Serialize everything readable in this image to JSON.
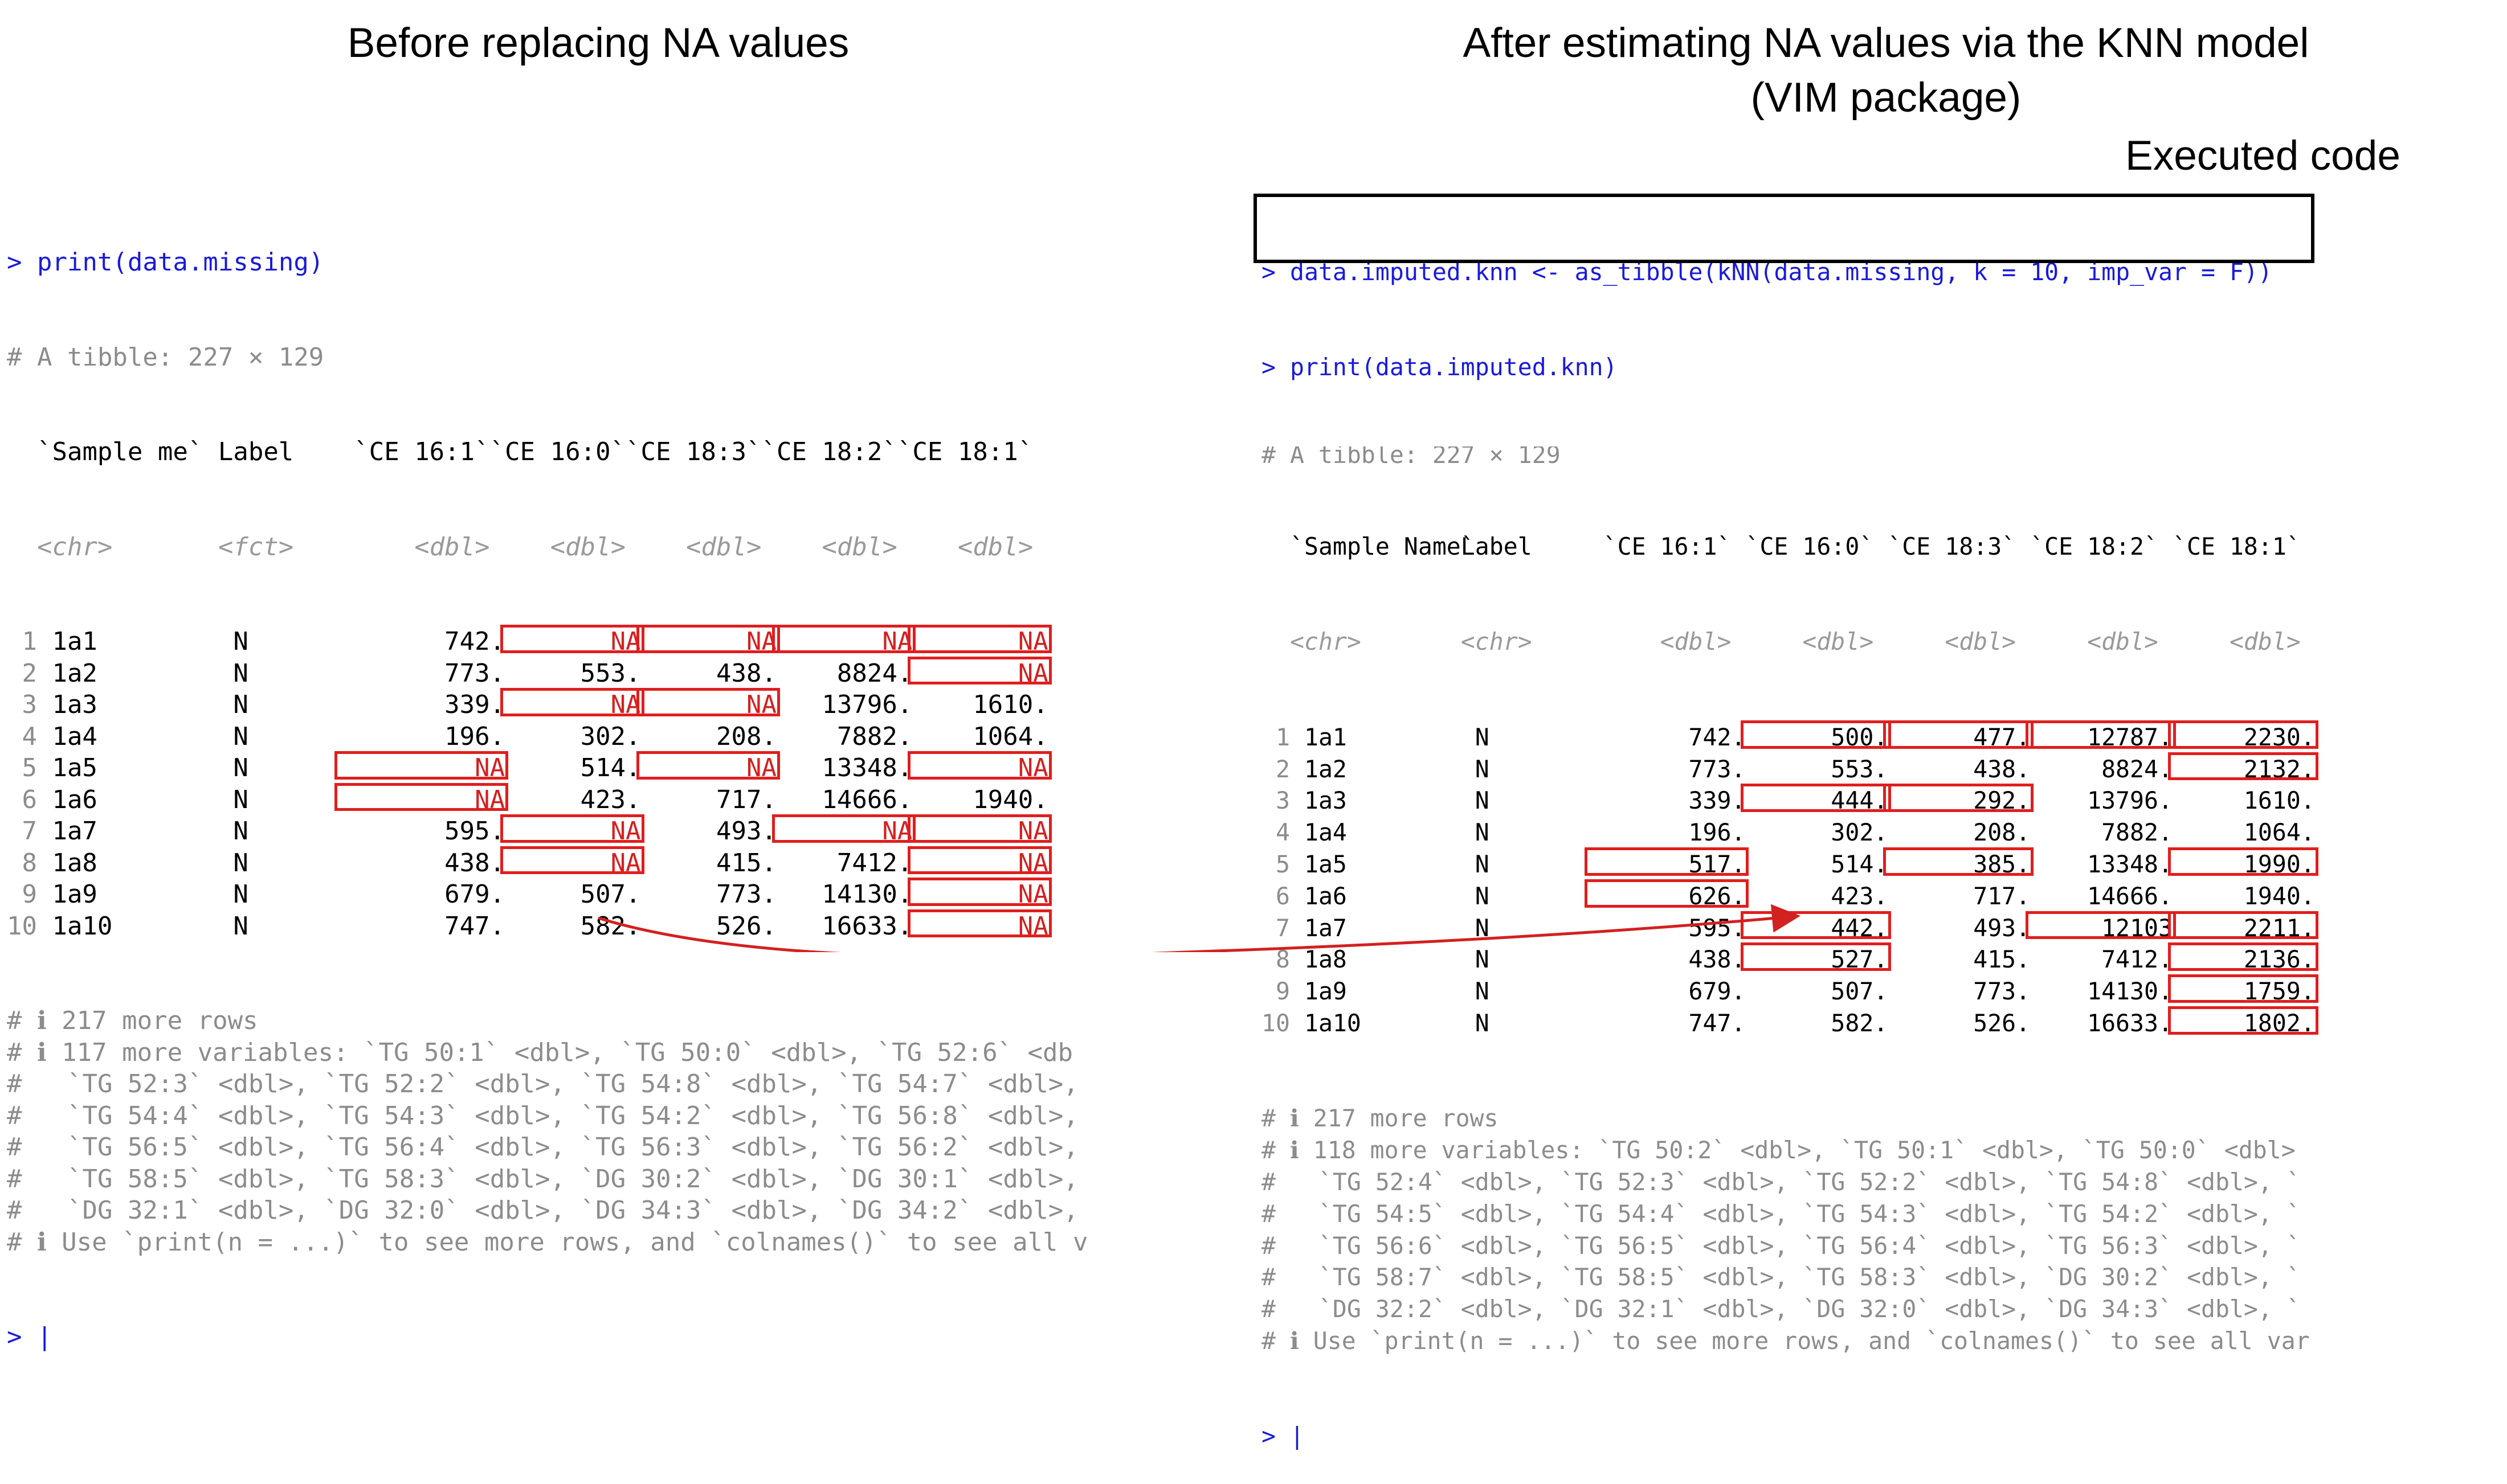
{
  "headings": {
    "left": "Before replacing NA values",
    "right_line1": "After estimating NA values via the KNN model",
    "right_line2": "(VIM package)",
    "executed": "Executed code"
  },
  "left": {
    "prompt_cmd": "> print(data.missing)",
    "tibble_info": "# A tibble: 227 × 129",
    "columns": [
      "`Sample me`",
      "Label",
      "`CE 16:1`",
      "`CE 16:0`",
      "`CE 18:3`",
      "`CE 18:2`",
      "`CE 18:1`"
    ],
    "types": [
      "<chr>",
      "<fct>",
      "<dbl>",
      "<dbl>",
      "<dbl>",
      "<dbl>",
      "<dbl>"
    ],
    "rows": [
      [
        "1",
        "1a1",
        "N",
        "742.",
        "NA",
        "NA",
        "NA",
        "NA"
      ],
      [
        "2",
        "1a2",
        "N",
        "773.",
        "553.",
        "438.",
        "8824.",
        "NA"
      ],
      [
        "3",
        "1a3",
        "N",
        "339.",
        "NA",
        "NA",
        "13796.",
        "1610."
      ],
      [
        "4",
        "1a4",
        "N",
        "196.",
        "302.",
        "208.",
        "7882.",
        "1064."
      ],
      [
        "5",
        "1a5",
        "N",
        "NA",
        "514.",
        "NA",
        "13348.",
        "NA"
      ],
      [
        "6",
        "1a6",
        "N",
        "NA",
        "423.",
        "717.",
        "14666.",
        "1940."
      ],
      [
        "7",
        "1a7",
        "N",
        "595.",
        "NA",
        "493.",
        "NA",
        "NA"
      ],
      [
        "8",
        "1a8",
        "N",
        "438.",
        "NA",
        "415.",
        "7412.",
        "NA"
      ],
      [
        "9",
        "1a9",
        "N",
        "679.",
        "507.",
        "773.",
        "14130.",
        "NA"
      ],
      [
        "10",
        "1a10",
        "N",
        "747.",
        "582.",
        "526.",
        "16633.",
        "NA"
      ]
    ],
    "footer": [
      "# ℹ 217 more rows",
      "# ℹ 117 more variables: `TG 50:1` <dbl>, `TG 50:0` <dbl>, `TG 52:6` <db",
      "#   `TG 52:3` <dbl>, `TG 52:2` <dbl>, `TG 54:8` <dbl>, `TG 54:7` <dbl>,",
      "#   `TG 54:4` <dbl>, `TG 54:3` <dbl>, `TG 54:2` <dbl>, `TG 56:8` <dbl>,",
      "#   `TG 56:5` <dbl>, `TG 56:4` <dbl>, `TG 56:3` <dbl>, `TG 56:2` <dbl>,",
      "#   `TG 58:5` <dbl>, `TG 58:3` <dbl>, `DG 30:2` <dbl>, `DG 30:1` <dbl>,",
      "#   `DG 32:1` <dbl>, `DG 32:0` <dbl>, `DG 34:3` <dbl>, `DG 34:2` <dbl>,",
      "# ℹ Use `print(n = ...)` to see more rows, and `colnames()` to see all v"
    ],
    "final_prompt": "> |"
  },
  "right": {
    "code_line1": "> data.imputed.knn <- as_tibble(kNN(data.missing, k = 10, imp_var = F))",
    "code_line2": "> print(data.imputed.knn)",
    "tibble_info": "# A tibble: 227 × 129",
    "columns": [
      "`Sample Name`",
      "Label",
      "`CE 16:1`",
      "`CE 16:0`",
      "`CE 18:3`",
      "`CE 18:2`",
      "`CE 18:1`"
    ],
    "types": [
      "<chr>",
      "<chr>",
      "<dbl>",
      "<dbl>",
      "<dbl>",
      "<dbl>",
      "<dbl>"
    ],
    "rows": [
      [
        "1",
        "1a1",
        "N",
        "742.",
        "500.",
        "477.",
        "12787.",
        "2230."
      ],
      [
        "2",
        "1a2",
        "N",
        "773.",
        "553.",
        "438.",
        "8824.",
        "2132."
      ],
      [
        "3",
        "1a3",
        "N",
        "339.",
        "444.",
        "292.",
        "13796.",
        "1610."
      ],
      [
        "4",
        "1a4",
        "N",
        "196.",
        "302.",
        "208.",
        "7882.",
        "1064."
      ],
      [
        "5",
        "1a5",
        "N",
        "517.",
        "514.",
        "385.",
        "13348.",
        "1990."
      ],
      [
        "6",
        "1a6",
        "N",
        "626.",
        "423.",
        "717.",
        "14666.",
        "1940."
      ],
      [
        "7",
        "1a7",
        "N",
        "595.",
        "442.",
        "493.",
        "12103",
        "2211."
      ],
      [
        "8",
        "1a8",
        "N",
        "438.",
        "527.",
        "415.",
        "7412.",
        "2136."
      ],
      [
        "9",
        "1a9",
        "N",
        "679.",
        "507.",
        "773.",
        "14130.",
        "1759."
      ],
      [
        "10",
        "1a10",
        "N",
        "747.",
        "582.",
        "526.",
        "16633.",
        "1802."
      ]
    ],
    "footer": [
      "# ℹ 217 more rows",
      "# ℹ 118 more variables: `TG 50:2` <dbl>, `TG 50:1` <dbl>, `TG 50:0` <dbl>",
      "#   `TG 52:4` <dbl>, `TG 52:3` <dbl>, `TG 52:2` <dbl>, `TG 54:8` <dbl>, `",
      "#   `TG 54:5` <dbl>, `TG 54:4` <dbl>, `TG 54:3` <dbl>, `TG 54:2` <dbl>, `",
      "#   `TG 56:6` <dbl>, `TG 56:5` <dbl>, `TG 56:4` <dbl>, `TG 56:3` <dbl>, `",
      "#   `TG 58:7` <dbl>, `TG 58:5` <dbl>, `TG 58:3` <dbl>, `DG 30:2` <dbl>, `",
      "#   `DG 32:2` <dbl>, `DG 32:1` <dbl>, `DG 32:0` <dbl>, `DG 34:3` <dbl>, `",
      "# ℹ Use `print(n = ...)` to see more rows, and `colnames()` to see all var"
    ],
    "final_prompt": "> |"
  },
  "colors": {
    "command": "#1a1adb",
    "comment": "#8c8c8c",
    "na_value": "#d32020",
    "highlight": "#e01e1e",
    "arrow": "#d32020"
  }
}
